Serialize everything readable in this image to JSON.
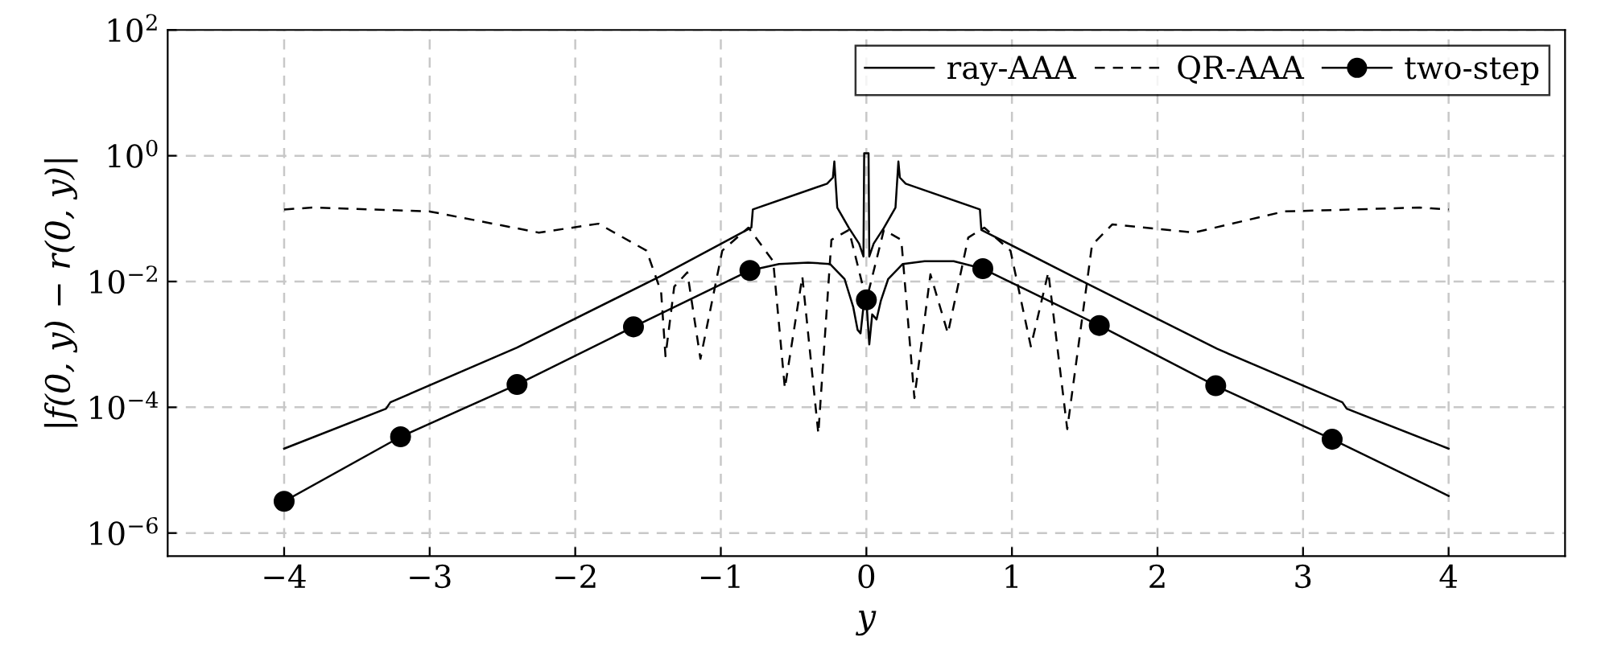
{
  "chart_data": {
    "type": "line",
    "xlabel": "y",
    "ylabel": "|f(0, y) − r(0, y)|",
    "log": "y",
    "grid": true,
    "legend": "top right",
    "xlim": [
      -4.8,
      4.8
    ],
    "xticks": [
      {
        "value": -4,
        "label": "−4"
      },
      {
        "value": -3,
        "label": "−3"
      },
      {
        "value": -2,
        "label": "−2"
      },
      {
        "value": -1,
        "label": "−1"
      },
      0,
      1,
      2,
      3,
      4
    ],
    "ylim": [
      4.3e-07,
      100
    ],
    "yticks": [
      {
        "value": 1e-06,
        "label": "10$^{−6}$"
      },
      {
        "value": 0.0001,
        "label": "10$^{−4}$"
      },
      {
        "value": 0.01,
        "label": "10$^{−2}$"
      },
      {
        "value": 1,
        "label": "10$^{0}$"
      },
      {
        "value": 100,
        "label": "10$^{2}$"
      }
    ],
    "series": [
      {
        "name": "ray-AAA",
        "color": "#000000",
        "line_style": "solid",
        "marker": "none",
        "x": [
          -4,
          -3.3,
          -3.27,
          -2.4,
          -1.42,
          -0.79,
          -0.78,
          -0.27,
          -0.23,
          -0.22,
          -0.2,
          -0.12,
          -0.05,
          -0.02,
          -0.015,
          0.015,
          0.02,
          0.05,
          0.12,
          0.2,
          0.22,
          0.23,
          0.27,
          0.78,
          0.79,
          1.42,
          2.41,
          3.27,
          3.3,
          4
        ],
        "values": [
          2.2e-05,
          9.5e-05,
          0.00012,
          0.00089,
          0.012,
          0.072,
          0.14,
          0.36,
          0.45,
          0.81,
          0.15,
          0.071,
          0.04,
          0.025,
          1.1,
          1.1,
          0.025,
          0.04,
          0.071,
          0.15,
          0.81,
          0.45,
          0.36,
          0.14,
          0.066,
          0.012,
          0.00085,
          0.00012,
          9.5e-05,
          2.2e-05
        ]
      },
      {
        "name": "QR-AAA",
        "color": "#000000",
        "line_style": "dashed",
        "marker": "none",
        "x": [
          -4,
          -3.8,
          -3.0,
          -2.25,
          -1.84,
          -1.51,
          -1.41,
          -1.38,
          -1.32,
          -1.23,
          -1.14,
          -0.99,
          -0.81,
          -0.64,
          -0.56,
          -0.44,
          -0.33,
          -0.24,
          -0.12,
          0,
          0.12,
          0.24,
          0.33,
          0.44,
          0.56,
          0.7,
          0.81,
          0.99,
          1.13,
          1.25,
          1.38,
          1.55,
          1.69,
          2.25,
          2.87,
          3.8,
          4
        ],
        "values": [
          0.14,
          0.15,
          0.13,
          0.06,
          0.083,
          0.031,
          0.0068,
          0.00065,
          0.0083,
          0.014,
          0.00059,
          0.031,
          0.072,
          0.021,
          0.0002,
          0.012,
          3.8e-05,
          0.046,
          0.066,
          0.005,
          0.066,
          0.046,
          0.00014,
          0.013,
          0.0015,
          0.05,
          0.072,
          0.031,
          0.00093,
          0.014,
          4.5e-05,
          0.038,
          0.081,
          0.06,
          0.13,
          0.15,
          0.14
        ]
      },
      {
        "name": "two-step",
        "type": "scatter",
        "color": "#000000",
        "line_style": "solid",
        "marker": "circle",
        "x": [
          -4,
          -3.2,
          -2.4,
          -1.6,
          -0.8,
          0,
          0.8,
          1.6,
          2.4,
          3.2
        ],
        "values": [
          3.2e-06,
          3.4e-05,
          0.00023,
          0.0019,
          0.015,
          0.0051,
          0.016,
          0.002,
          0.00022,
          3.1e-05
        ]
      },
      {
        "color": "#000000",
        "line_style": "solid",
        "marker": "none",
        "x": [
          -4,
          -3.2,
          -2.4,
          -1.6,
          -0.8,
          -0.6,
          -0.4,
          -0.25,
          -0.15,
          -0.09,
          -0.06,
          -0.04,
          -0.02,
          0,
          0.02,
          0.04,
          0.07,
          0.1,
          0.15,
          0.25,
          0.4,
          0.6,
          0.8,
          1.6,
          2.4,
          3.2,
          4
        ],
        "values": [
          3.2e-06,
          3.4e-05,
          0.00023,
          0.0019,
          0.015,
          0.019,
          0.02,
          0.019,
          0.011,
          0.0039,
          0.0017,
          0.0015,
          0.004,
          0.0051,
          0.001,
          0.003,
          0.0025,
          0.005,
          0.011,
          0.019,
          0.021,
          0.021,
          0.016,
          0.002,
          0.00022,
          3.1e-05,
          3.9e-06
        ]
      }
    ]
  }
}
